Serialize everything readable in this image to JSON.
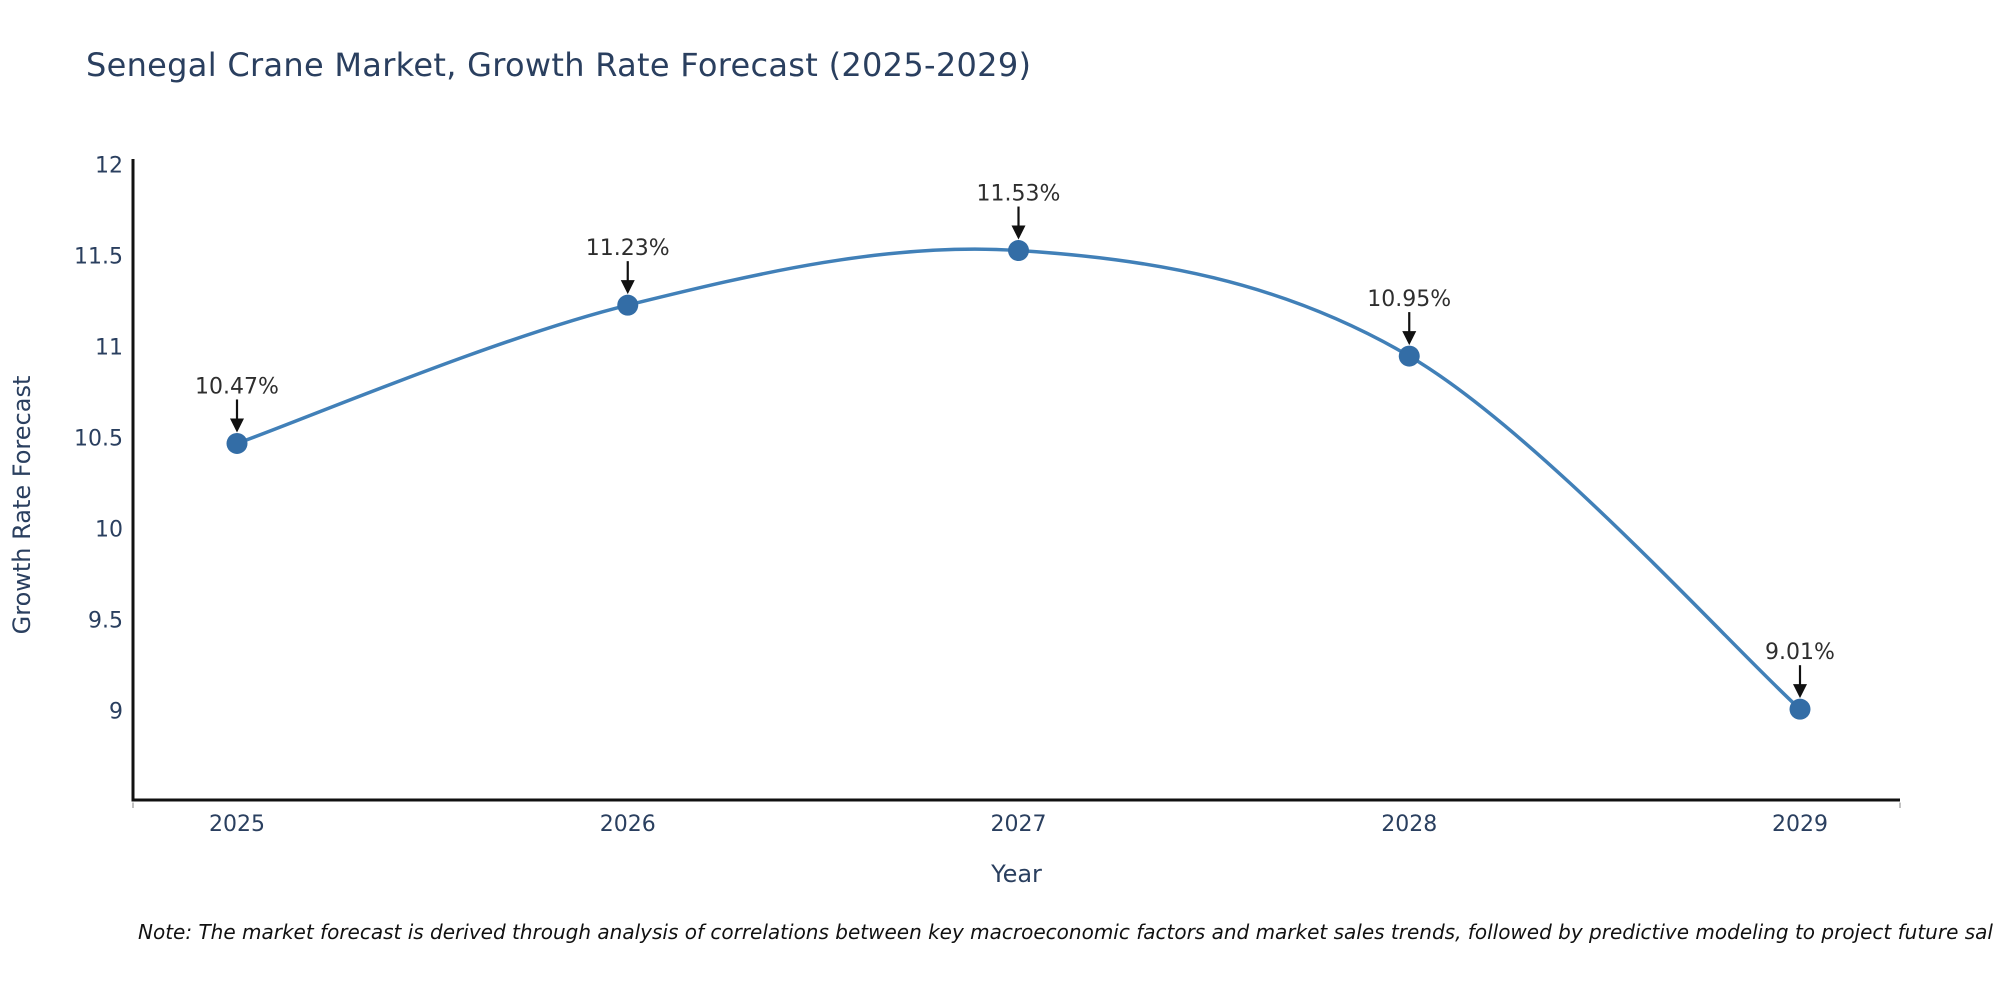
{
  "chart": {
    "title": "Senegal Crane Market, Growth Rate Forecast (2025-2029)"
  },
  "note": {
    "text": "Note: The market forecast is derived through analysis of correlations between key macroeconomic factors and market sales trends, followed by predictive modeling to project future sal"
  },
  "chart_data": {
    "type": "line",
    "title": "Senegal Crane Market, Growth Rate Forecast (2025-2029)",
    "categories": [
      "2025",
      "2026",
      "2027",
      "2028",
      "2029"
    ],
    "values": [
      10.47,
      11.23,
      11.53,
      10.95,
      9.01
    ],
    "point_labels": [
      "10.47%",
      "11.23%",
      "11.53%",
      "10.95%",
      "9.01%"
    ],
    "xlabel": "Year",
    "ylabel": "Growth Rate Forecast",
    "yticks": [
      9,
      9.5,
      10,
      10.5,
      11,
      11.5,
      12
    ],
    "ytick_labels": [
      "9",
      "9.5",
      "10",
      "10.5",
      "11",
      "11.5",
      "12"
    ],
    "ylim": [
      8.5,
      12.05
    ],
    "line_shape": "spline",
    "grid": false,
    "legend": "none",
    "annotations": "value label with downward arrow above each data point",
    "colors": {
      "line": "#4180b8",
      "marker": "#336da6",
      "axis_line": "#111111",
      "tick_text": "#2a3f5f",
      "title_text": "#2a3f5f",
      "annotation_text": "#2e2e2e",
      "arrow": "#111111",
      "note_text": "#111111",
      "background": "#ffffff"
    }
  }
}
